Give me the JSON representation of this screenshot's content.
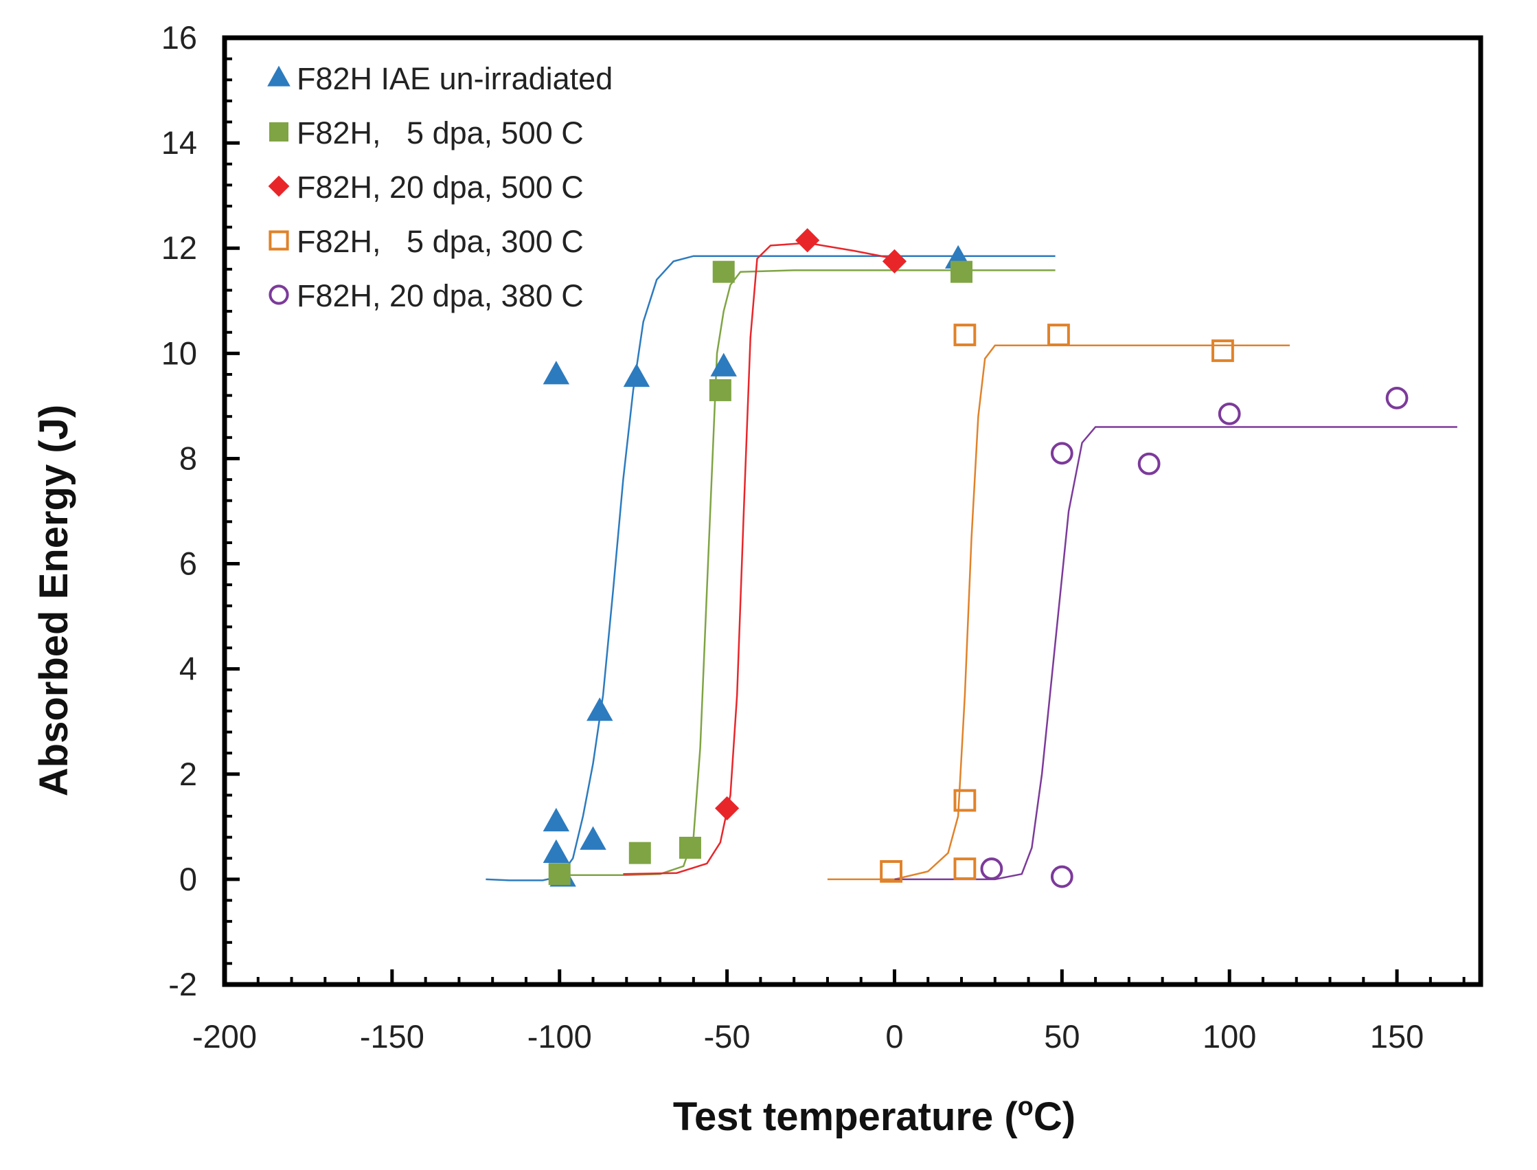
{
  "chart_data": {
    "type": "scatter",
    "title": "",
    "xlabel": "Test temperature (",
    "xlabel_sup": "o",
    "xlabel_suffix": "C)",
    "ylabel": "Absorbed Energy (J)",
    "xlim": [
      -200,
      175
    ],
    "ylim": [
      -2,
      16
    ],
    "xticks": [
      -200,
      -150,
      -100,
      -50,
      0,
      50,
      100,
      150
    ],
    "yticks": [
      -2,
      0,
      2,
      4,
      6,
      8,
      10,
      12,
      14,
      16
    ],
    "grid": false,
    "legend_position": "top-left",
    "series": [
      {
        "name": "F82H IAE un-irradiated",
        "marker": "triangle",
        "filled": true,
        "color": "#2c7bbf",
        "points": [
          [
            -101,
            9.6
          ],
          [
            -101,
            1.1
          ],
          [
            -101,
            0.5
          ],
          [
            -99,
            0.05
          ],
          [
            -90,
            0.75
          ],
          [
            -88,
            3.2
          ],
          [
            -77,
            9.55
          ],
          [
            -51,
            9.75
          ],
          [
            19,
            11.8
          ]
        ],
        "curve": [
          [
            -122,
            0.0
          ],
          [
            -115,
            -0.02
          ],
          [
            -105,
            -0.02
          ],
          [
            -100,
            0.05
          ],
          [
            -96,
            0.4
          ],
          [
            -93,
            1.2
          ],
          [
            -90,
            2.2
          ],
          [
            -87,
            3.5
          ],
          [
            -84,
            5.5
          ],
          [
            -81,
            7.6
          ],
          [
            -78,
            9.3
          ],
          [
            -75,
            10.6
          ],
          [
            -71,
            11.4
          ],
          [
            -66,
            11.75
          ],
          [
            -60,
            11.85
          ],
          [
            -40,
            11.85
          ],
          [
            0,
            11.85
          ],
          [
            48,
            11.85
          ]
        ]
      },
      {
        "name": "F82H,   5 dpa, 500 C",
        "marker": "square",
        "filled": true,
        "color": "#7fa444",
        "points": [
          [
            -100,
            0.1
          ],
          [
            -76,
            0.5
          ],
          [
            -61,
            0.6
          ],
          [
            -52,
            9.3
          ],
          [
            -51,
            11.55
          ],
          [
            20,
            11.55
          ]
        ],
        "curve": [
          [
            -100,
            0.08
          ],
          [
            -80,
            0.08
          ],
          [
            -70,
            0.1
          ],
          [
            -63,
            0.25
          ],
          [
            -60,
            0.8
          ],
          [
            -58,
            2.5
          ],
          [
            -56,
            5.5
          ],
          [
            -54,
            8.5
          ],
          [
            -53,
            10.0
          ],
          [
            -51,
            10.8
          ],
          [
            -49,
            11.3
          ],
          [
            -46,
            11.55
          ],
          [
            -30,
            11.58
          ],
          [
            0,
            11.58
          ],
          [
            48,
            11.58
          ]
        ]
      },
      {
        "name": "F82H, 20 dpa, 500 C",
        "marker": "diamond",
        "filled": true,
        "color": "#e8262a",
        "points": [
          [
            -50,
            1.35
          ],
          [
            -26,
            12.15
          ],
          [
            0,
            11.75
          ]
        ],
        "curve": [
          [
            -81,
            0.1
          ],
          [
            -65,
            0.12
          ],
          [
            -56,
            0.3
          ],
          [
            -52,
            0.7
          ],
          [
            -49,
            1.6
          ],
          [
            -47,
            3.5
          ],
          [
            -45,
            7.0
          ],
          [
            -43,
            10.3
          ],
          [
            -41,
            11.8
          ],
          [
            -37,
            12.05
          ],
          [
            -26,
            12.1
          ],
          [
            -12,
            11.95
          ],
          [
            0,
            11.8
          ]
        ]
      },
      {
        "name": "F82H,   5 dpa, 300 C",
        "marker": "square",
        "filled": false,
        "color": "#e0822a",
        "points": [
          [
            -1,
            0.15
          ],
          [
            21,
            0.2
          ],
          [
            21,
            1.5
          ],
          [
            21,
            10.35
          ],
          [
            49,
            10.35
          ],
          [
            98,
            10.05
          ]
        ],
        "curve": [
          [
            -20,
            0.0
          ],
          [
            0,
            0.0
          ],
          [
            10,
            0.15
          ],
          [
            16,
            0.5
          ],
          [
            19,
            1.2
          ],
          [
            21,
            3.5
          ],
          [
            23,
            6.5
          ],
          [
            25,
            8.8
          ],
          [
            27,
            9.9
          ],
          [
            30,
            10.15
          ],
          [
            40,
            10.15
          ],
          [
            80,
            10.15
          ],
          [
            118,
            10.15
          ]
        ]
      },
      {
        "name": "F82H, 20 dpa, 380 C",
        "marker": "circle",
        "filled": false,
        "color": "#7c3a9a",
        "points": [
          [
            29,
            0.2
          ],
          [
            50,
            0.05
          ],
          [
            50,
            8.1
          ],
          [
            76,
            7.9
          ],
          [
            100,
            8.85
          ],
          [
            150,
            9.15
          ]
        ],
        "curve": [
          [
            0,
            0.0
          ],
          [
            30,
            0.0
          ],
          [
            38,
            0.1
          ],
          [
            41,
            0.6
          ],
          [
            44,
            2.0
          ],
          [
            48,
            4.5
          ],
          [
            52,
            7.0
          ],
          [
            56,
            8.3
          ],
          [
            60,
            8.6
          ],
          [
            100,
            8.6
          ],
          [
            168,
            8.6
          ]
        ]
      }
    ]
  }
}
